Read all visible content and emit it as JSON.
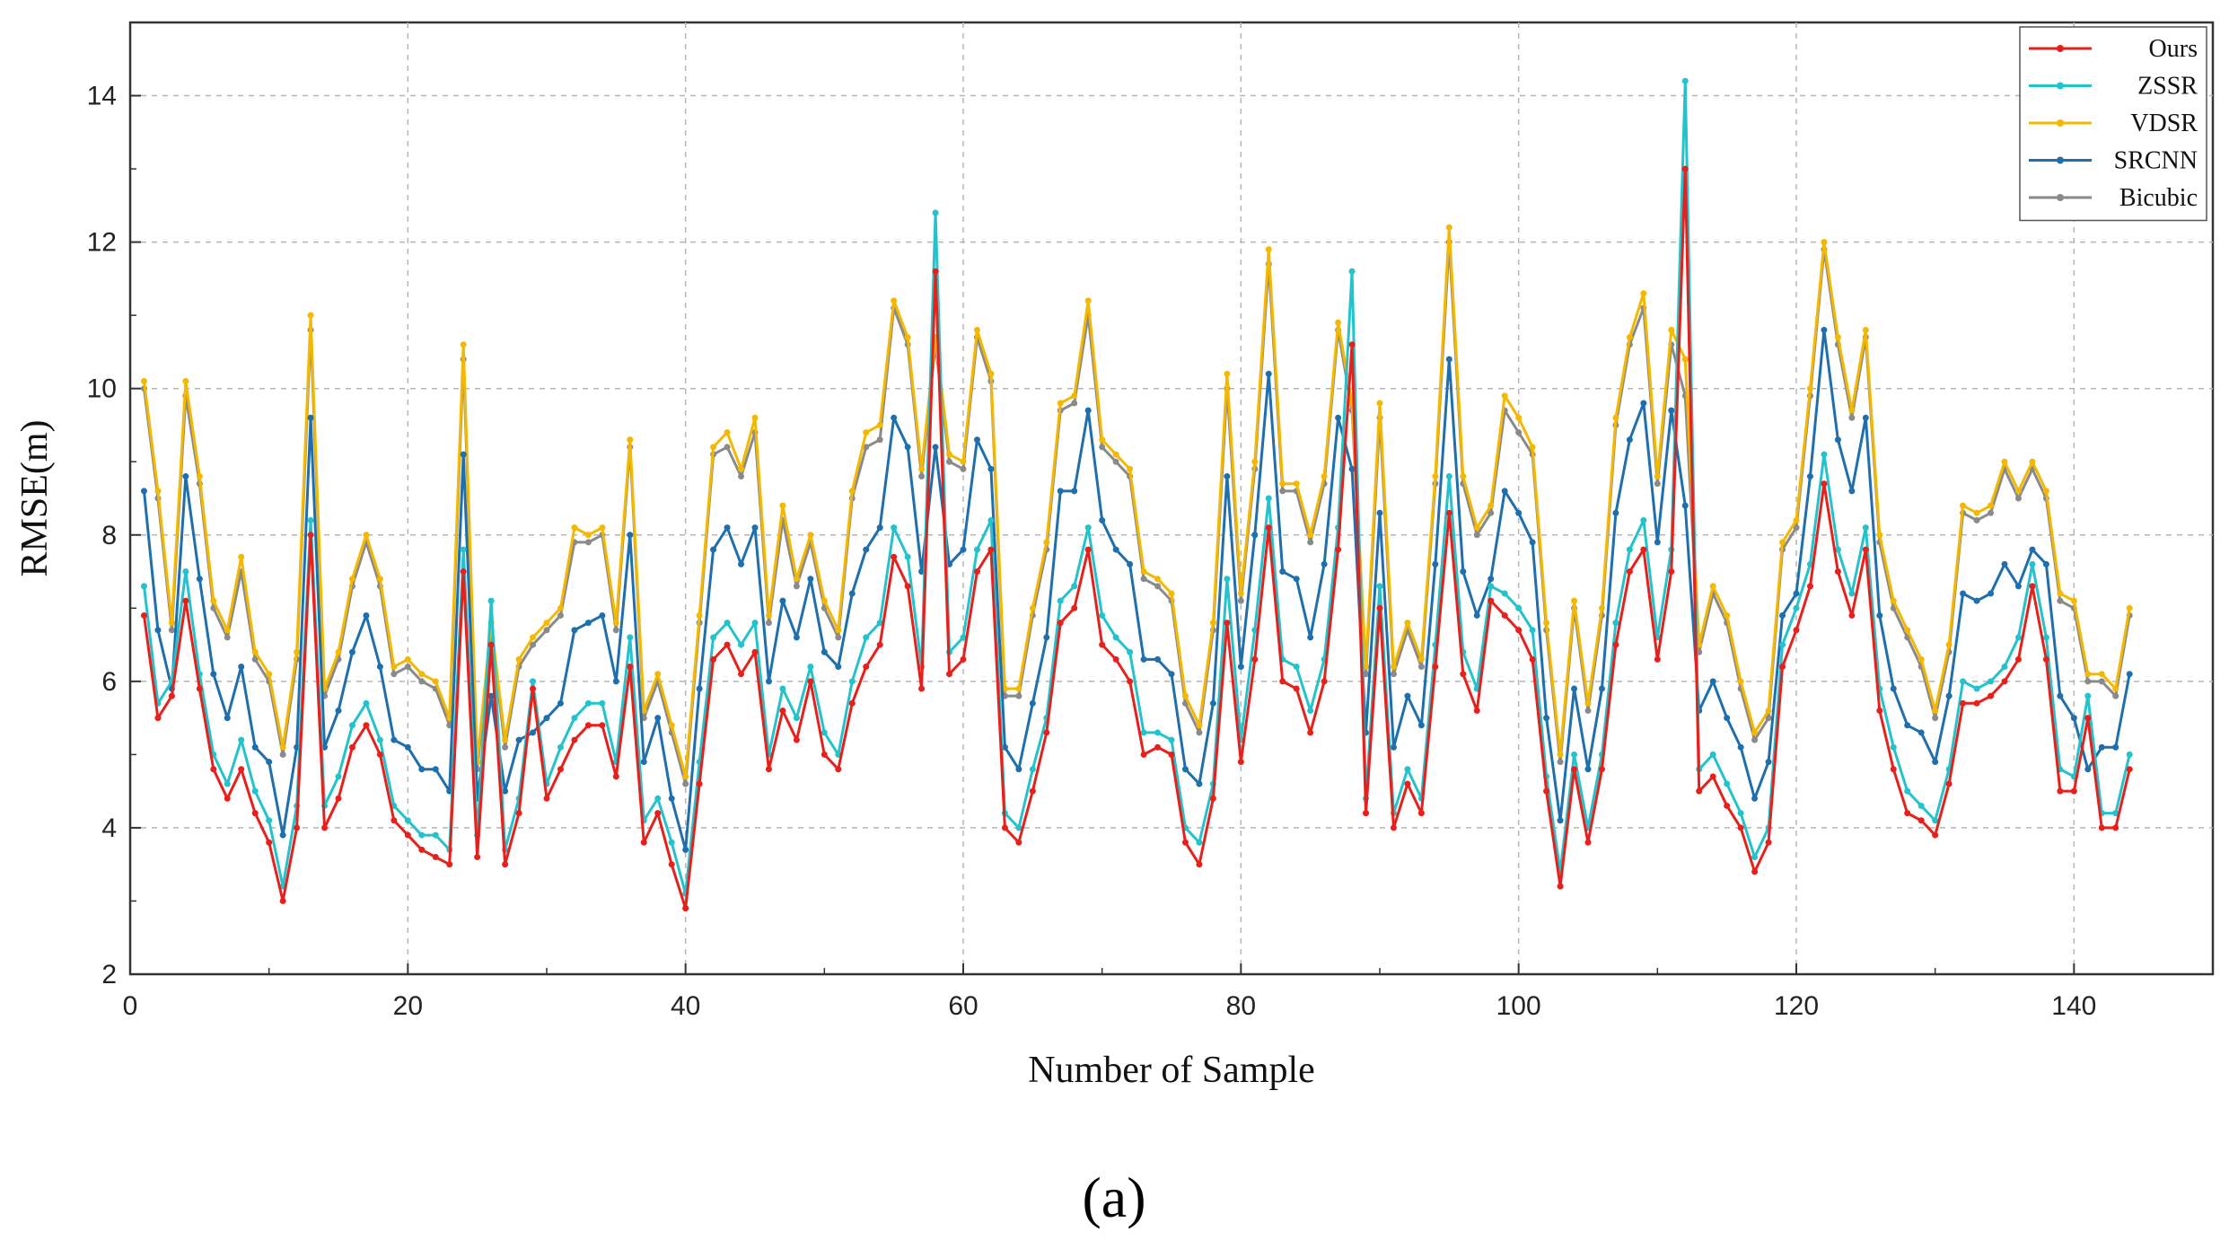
{
  "chart_data": {
    "type": "line",
    "title": "",
    "xlabel": "Number of Sample",
    "ylabel": "RMSE(m)",
    "caption": "(a)",
    "xlim": [
      0,
      150
    ],
    "ylim": [
      2,
      15
    ],
    "xticks": [
      0,
      20,
      40,
      60,
      80,
      100,
      120,
      140
    ],
    "yticks": [
      2,
      4,
      6,
      8,
      10,
      12,
      14
    ],
    "grid": true,
    "legend_position": "top-right",
    "x": [
      1,
      2,
      3,
      4,
      5,
      6,
      7,
      8,
      9,
      10,
      11,
      12,
      13,
      14,
      15,
      16,
      17,
      18,
      19,
      20,
      21,
      22,
      23,
      24,
      25,
      26,
      27,
      28,
      29,
      30,
      31,
      32,
      33,
      34,
      35,
      36,
      37,
      38,
      39,
      40,
      41,
      42,
      43,
      44,
      45,
      46,
      47,
      48,
      49,
      50,
      51,
      52,
      53,
      54,
      55,
      56,
      57,
      58,
      59,
      60,
      61,
      62,
      63,
      64,
      65,
      66,
      67,
      68,
      69,
      70,
      71,
      72,
      73,
      74,
      75,
      76,
      77,
      78,
      79,
      80,
      81,
      82,
      83,
      84,
      85,
      86,
      87,
      88,
      89,
      90,
      91,
      92,
      93,
      94,
      95,
      96,
      97,
      98,
      99,
      100,
      101,
      102,
      103,
      104,
      105,
      106,
      107,
      108,
      109,
      110,
      111,
      112,
      113,
      114,
      115,
      116,
      117,
      118,
      119,
      120,
      121,
      122,
      123,
      124,
      125,
      126,
      127,
      128,
      129,
      130,
      131,
      132,
      133,
      134,
      135,
      136,
      137,
      138,
      139,
      140,
      141,
      142,
      143,
      144
    ],
    "series": [
      {
        "name": "Ours",
        "color": "#e8201c",
        "values": [
          6.9,
          5.5,
          5.8,
          7.1,
          5.9,
          4.8,
          4.4,
          4.8,
          4.2,
          3.8,
          3.0,
          4.0,
          8.0,
          4.0,
          4.4,
          5.1,
          5.4,
          5.0,
          4.1,
          3.9,
          3.7,
          3.6,
          3.5,
          7.5,
          3.6,
          6.5,
          3.5,
          4.2,
          5.9,
          4.4,
          4.8,
          5.2,
          5.4,
          5.4,
          4.7,
          6.2,
          3.8,
          4.2,
          3.5,
          2.9,
          4.6,
          6.3,
          6.5,
          6.1,
          6.4,
          4.8,
          5.6,
          5.2,
          6.0,
          5.0,
          4.8,
          5.7,
          6.2,
          6.5,
          7.7,
          7.3,
          5.9,
          11.6,
          6.1,
          6.3,
          7.5,
          7.8,
          4.0,
          3.8,
          4.5,
          5.3,
          6.8,
          7.0,
          7.8,
          6.5,
          6.3,
          6.0,
          5.0,
          5.1,
          5.0,
          3.8,
          3.5,
          4.4,
          6.8,
          4.9,
          6.3,
          8.1,
          6.0,
          5.9,
          5.3,
          6.0,
          7.8,
          10.6,
          4.2,
          7.0,
          4.0,
          4.6,
          4.2,
          6.2,
          8.3,
          6.1,
          5.6,
          7.1,
          6.9,
          6.7,
          6.3,
          4.5,
          3.2,
          4.8,
          3.8,
          4.8,
          6.5,
          7.5,
          7.8,
          6.3,
          7.5,
          13.0,
          4.5,
          4.7,
          4.3,
          4.0,
          3.4,
          3.8,
          6.2,
          6.7,
          7.3,
          8.7,
          7.5,
          6.9,
          7.8,
          5.6,
          4.8,
          4.2,
          4.1,
          3.9,
          4.6,
          5.7,
          5.7,
          5.8,
          6.0,
          6.3,
          7.3,
          6.3,
          4.5,
          4.5,
          5.5,
          4.0,
          4.0,
          4.8
        ]
      },
      {
        "name": "ZSSR",
        "color": "#22c3cc",
        "values": [
          7.3,
          5.7,
          6.0,
          7.5,
          6.1,
          5.0,
          4.6,
          5.2,
          4.5,
          4.1,
          3.2,
          4.3,
          8.2,
          4.3,
          4.7,
          5.4,
          5.7,
          5.2,
          4.3,
          4.1,
          3.9,
          3.9,
          3.7,
          7.8,
          3.9,
          7.1,
          3.7,
          4.4,
          6.0,
          4.6,
          5.1,
          5.5,
          5.7,
          5.7,
          4.9,
          6.6,
          4.1,
          4.4,
          3.8,
          3.1,
          4.9,
          6.6,
          6.8,
          6.5,
          6.8,
          5.0,
          5.9,
          5.5,
          6.2,
          5.3,
          5.0,
          6.0,
          6.6,
          6.8,
          8.1,
          7.7,
          6.2,
          12.4,
          6.4,
          6.6,
          7.8,
          8.2,
          4.2,
          4.0,
          4.8,
          5.5,
          7.1,
          7.3,
          8.1,
          6.9,
          6.6,
          6.4,
          5.3,
          5.3,
          5.2,
          4.0,
          3.8,
          4.6,
          7.4,
          5.2,
          6.7,
          8.5,
          6.3,
          6.2,
          5.6,
          6.3,
          8.1,
          11.6,
          4.4,
          7.3,
          4.2,
          4.8,
          4.4,
          6.5,
          8.8,
          6.4,
          5.9,
          7.3,
          7.2,
          7.0,
          6.7,
          4.7,
          3.4,
          5.0,
          4.0,
          5.0,
          6.8,
          7.8,
          8.2,
          6.6,
          7.8,
          14.2,
          4.8,
          5.0,
          4.6,
          4.2,
          3.6,
          4.0,
          6.5,
          7.0,
          7.6,
          9.1,
          7.8,
          7.2,
          8.1,
          5.9,
          5.1,
          4.5,
          4.3,
          4.1,
          4.8,
          6.0,
          5.9,
          6.0,
          6.2,
          6.6,
          7.6,
          6.6,
          4.8,
          4.7,
          5.8,
          4.2,
          4.2,
          5.0
        ]
      },
      {
        "name": "VDSR",
        "color": "#f5b800",
        "values": [
          10.1,
          8.6,
          6.8,
          10.1,
          8.8,
          7.1,
          6.7,
          7.7,
          6.4,
          6.1,
          5.1,
          6.4,
          11.0,
          5.9,
          6.4,
          7.4,
          8.0,
          7.4,
          6.2,
          6.3,
          6.1,
          6.0,
          5.5,
          10.6,
          4.9,
          6.8,
          5.2,
          6.3,
          6.6,
          6.8,
          7.0,
          8.1,
          8.0,
          8.1,
          6.8,
          9.3,
          5.6,
          6.1,
          5.4,
          4.7,
          6.9,
          9.2,
          9.4,
          8.9,
          9.6,
          6.9,
          8.4,
          7.4,
          8.0,
          7.1,
          6.7,
          8.6,
          9.4,
          9.5,
          11.2,
          10.7,
          8.9,
          10.7,
          9.1,
          9.0,
          10.8,
          10.2,
          5.9,
          5.9,
          7.0,
          7.9,
          9.8,
          9.9,
          11.2,
          9.3,
          9.1,
          8.9,
          7.5,
          7.4,
          7.2,
          5.8,
          5.4,
          6.8,
          10.2,
          7.2,
          9.0,
          11.9,
          8.7,
          8.7,
          8.0,
          8.8,
          10.9,
          9.8,
          6.2,
          9.8,
          6.2,
          6.8,
          6.3,
          8.8,
          12.2,
          8.8,
          8.1,
          8.4,
          9.9,
          9.6,
          9.2,
          6.8,
          5.0,
          7.1,
          5.7,
          7.0,
          9.6,
          10.7,
          11.3,
          8.8,
          10.8,
          10.4,
          6.5,
          7.3,
          6.9,
          6.0,
          5.3,
          5.6,
          7.9,
          8.2,
          10.0,
          12.0,
          10.7,
          9.7,
          10.8,
          8.0,
          7.1,
          6.7,
          6.3,
          5.6,
          6.5,
          8.4,
          8.3,
          8.4,
          9.0,
          8.6,
          9.0,
          8.6,
          7.2,
          7.1,
          6.1,
          6.1,
          5.9,
          7.0
        ]
      },
      {
        "name": "SRCNN",
        "color": "#1f6fad",
        "values": [
          8.6,
          6.7,
          5.9,
          8.8,
          7.4,
          6.1,
          5.5,
          6.2,
          5.1,
          4.9,
          3.9,
          5.1,
          9.6,
          5.1,
          5.6,
          6.4,
          6.9,
          6.2,
          5.2,
          5.1,
          4.8,
          4.8,
          4.5,
          9.1,
          4.4,
          5.8,
          4.5,
          5.2,
          5.3,
          5.5,
          5.7,
          6.7,
          6.8,
          6.9,
          6.0,
          8.0,
          4.9,
          5.5,
          4.4,
          3.7,
          5.9,
          7.8,
          8.1,
          7.6,
          8.1,
          6.0,
          7.1,
          6.6,
          7.4,
          6.4,
          6.2,
          7.2,
          7.8,
          8.1,
          9.6,
          9.2,
          7.5,
          9.2,
          7.6,
          7.8,
          9.3,
          8.9,
          5.1,
          4.8,
          5.7,
          6.6,
          8.6,
          8.6,
          9.7,
          8.2,
          7.8,
          7.6,
          6.3,
          6.3,
          6.1,
          4.8,
          4.6,
          5.7,
          8.8,
          6.2,
          8.0,
          10.2,
          7.5,
          7.4,
          6.6,
          7.6,
          9.6,
          8.9,
          5.3,
          8.3,
          5.1,
          5.8,
          5.4,
          7.6,
          10.4,
          7.5,
          6.9,
          7.4,
          8.6,
          8.3,
          7.9,
          5.5,
          4.1,
          5.9,
          4.8,
          5.9,
          8.3,
          9.3,
          9.8,
          7.9,
          9.7,
          8.4,
          5.6,
          6.0,
          5.5,
          5.1,
          4.4,
          4.9,
          6.9,
          7.2,
          8.8,
          10.8,
          9.3,
          8.6,
          9.6,
          6.9,
          5.9,
          5.4,
          5.3,
          4.9,
          5.8,
          7.2,
          7.1,
          7.2,
          7.6,
          7.3,
          7.8,
          7.6,
          5.8,
          5.5,
          4.8,
          5.1,
          5.1,
          6.1
        ]
      },
      {
        "name": "Bicubic",
        "color": "#8a8a8a",
        "values": [
          10.0,
          8.5,
          6.7,
          9.9,
          8.7,
          7.0,
          6.6,
          7.5,
          6.3,
          6.0,
          5.0,
          6.3,
          10.8,
          5.8,
          6.3,
          7.3,
          7.9,
          7.3,
          6.1,
          6.2,
          6.0,
          5.9,
          5.4,
          10.4,
          4.8,
          6.7,
          5.1,
          6.2,
          6.5,
          6.7,
          6.9,
          7.9,
          7.9,
          8.0,
          6.7,
          9.2,
          5.5,
          6.0,
          5.3,
          4.6,
          6.8,
          9.1,
          9.2,
          8.8,
          9.4,
          6.8,
          8.2,
          7.3,
          7.9,
          7.0,
          6.6,
          8.5,
          9.2,
          9.3,
          11.1,
          10.6,
          8.8,
          10.6,
          9.0,
          8.9,
          10.7,
          10.1,
          5.8,
          5.8,
          6.9,
          7.8,
          9.7,
          9.8,
          11.0,
          9.2,
          9.0,
          8.8,
          7.4,
          7.3,
          7.1,
          5.7,
          5.3,
          6.7,
          10.0,
          7.1,
          8.9,
          11.7,
          8.6,
          8.6,
          7.9,
          8.7,
          10.8,
          9.7,
          6.1,
          9.6,
          6.1,
          6.7,
          6.2,
          8.7,
          12.0,
          8.7,
          8.0,
          8.3,
          9.7,
          9.4,
          9.1,
          6.7,
          4.9,
          7.0,
          5.6,
          6.9,
          9.5,
          10.6,
          11.1,
          8.7,
          10.6,
          9.9,
          6.4,
          7.2,
          6.8,
          5.9,
          5.2,
          5.5,
          7.8,
          8.1,
          9.9,
          11.9,
          10.6,
          9.6,
          10.7,
          7.9,
          7.0,
          6.6,
          6.2,
          5.5,
          6.4,
          8.3,
          8.2,
          8.3,
          8.9,
          8.5,
          8.9,
          8.5,
          7.1,
          7.0,
          6.0,
          6.0,
          5.8,
          6.9
        ]
      }
    ]
  }
}
